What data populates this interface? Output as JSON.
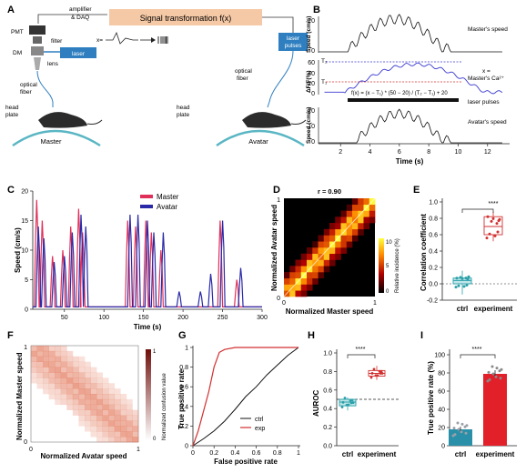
{
  "panels": {
    "A": {
      "letter": "A",
      "labels": {
        "amplifier": "amplifier",
        "daq": "& DAQ",
        "signal_box": "Signal transformation f(x)",
        "pmt": "PMT",
        "filter": "filter",
        "dm": "DM",
        "laser": "laser",
        "lens": "lens",
        "optical_fiber_l": "optical",
        "optical_fiber_l2": "fiber",
        "head_plate_l": "head",
        "head_plate_l2": "plate",
        "master": "Master",
        "x_eq": "x=",
        "laser_pulses_1": "laser",
        "laser_pulses_2": "pulses",
        "optical_fiber_r": "optical",
        "optical_fiber_r2": "fiber",
        "head_plate_r": "head",
        "head_plate_r2": "plate",
        "avatar": "Avatar"
      },
      "colors": {
        "signal_box": "#f6c9a6",
        "laser_box": "#2f7fc0",
        "wheel": "#5ab6c4"
      }
    },
    "B": {
      "letter": "B",
      "labels": {
        "ylabel_top": "Speed (cm/s)",
        "ylabel_mid": "ΔF/F(%)",
        "ylabel_bot": "Speed (cm/s)",
        "masters_speed": "Master's speed",
        "x_label_1": "x =",
        "x_label_2": "Master's Ca²⁺",
        "t2": "T₂",
        "t1": "T₁",
        "formula": "f(x) = (x − T₁) * (50 − 20) / (T₂ − T₁) + 20",
        "laser_pulses": "laser pulses",
        "avatars_speed": "Avatar's speed",
        "xlabel": "Time (s)"
      },
      "ticks_top": [
        "20",
        "0"
      ],
      "ticks_mid": [
        "60",
        "40",
        "20",
        "0"
      ],
      "ticks_bot": [
        "20",
        "10",
        "0"
      ],
      "ticks_x": [
        "2",
        "4",
        "6",
        "8",
        "10",
        "12"
      ],
      "colors": {
        "ca_trace": "#3a3ad0",
        "t2_line": "#3a3ad0",
        "t1_line": "#d23030"
      }
    },
    "C": {
      "letter": "C",
      "ylabel": "Speed (cm/s)",
      "xlabel": "Time (s)",
      "legend": [
        "Master",
        "Avatar"
      ],
      "colors": {
        "master": "#e0305a",
        "avatar": "#2a2aa8"
      },
      "chart_data": {
        "type": "line",
        "xlim": [
          0,
          300
        ],
        "ylim": [
          0,
          20
        ],
        "xticks": [
          "50",
          "100",
          "150",
          "200",
          "250",
          "300"
        ],
        "yticks": [
          "0",
          "5",
          "10",
          "15",
          "20"
        ],
        "series": [
          {
            "name": "Master",
            "bursts": [
              [
                15,
                18.5
              ],
              [
                22,
                15
              ],
              [
                35,
                9
              ],
              [
                48,
                10
              ],
              [
                58,
                14
              ],
              [
                68,
                17
              ],
              [
                73,
                13
              ],
              [
                130,
                15
              ],
              [
                140,
                14
              ],
              [
                153,
                15
              ],
              [
                160,
                13
              ],
              [
                172,
                10
              ],
              [
                247,
                15
              ],
              [
                268,
                5
              ]
            ]
          },
          {
            "name": "Avatar",
            "bursts": [
              [
                17,
                14
              ],
              [
                24,
                12
              ],
              [
                37,
                8
              ],
              [
                50,
                9
              ],
              [
                60,
                13
              ],
              [
                71,
                16
              ],
              [
                77,
                14
              ],
              [
                133,
                16
              ],
              [
                143,
                16
              ],
              [
                155,
                15
              ],
              [
                163,
                13
              ],
              [
                175,
                13
              ],
              [
                195,
                3
              ],
              [
                222,
                3
              ],
              [
                235,
                6
              ],
              [
                250,
                15
              ],
              [
                273,
                7
              ]
            ]
          }
        ]
      }
    },
    "D": {
      "letter": "D",
      "title": "r = 0.90",
      "ylabel": "Normalized Avatar speed",
      "xlabel": "Normalized Master speed",
      "cbar_label": "Relative incidence (%)",
      "cbar_ticks": [
        "10",
        "5",
        "0"
      ],
      "axis_ticks": {
        "x0": "0",
        "x1": "1",
        "y0": "0",
        "y1": "1"
      },
      "chart_data": {
        "type": "heatmap",
        "x_range": [
          0,
          1
        ],
        "y_range": [
          0,
          1
        ],
        "correlation": 0.9
      }
    },
    "E": {
      "letter": "E",
      "ylabel": "Correlation coefficient",
      "yticks": [
        "1.0",
        "0.8",
        "0.6",
        "0.4",
        "0.2",
        "0.0",
        "-0.2"
      ],
      "significance": "****",
      "chart_data": {
        "type": "box",
        "categories": [
          "ctrl",
          "experiment"
        ],
        "medians": [
          0.04,
          0.7
        ],
        "q1": [
          0.0,
          0.6
        ],
        "q3": [
          0.07,
          0.82
        ],
        "whisker_low": [
          -0.13,
          0.52
        ],
        "whisker_high": [
          0.16,
          0.88
        ],
        "ylim": [
          -0.2,
          1.0
        ]
      },
      "colors": {
        "ctrl": "#2aa0a8",
        "experiment": "#d23030"
      }
    },
    "F": {
      "letter": "F",
      "ylabel": "Normalized Master speed",
      "xlabel": "Normalized Avatar speed",
      "cbar_label": "Normalized confusion value",
      "cbar_ticks": [
        "1",
        "0"
      ],
      "axis_ticks": {
        "x0": "0",
        "x1": "1",
        "y0": "0",
        "y1": "1"
      },
      "chart_data": {
        "type": "heatmap",
        "x_range": [
          0,
          1
        ],
        "y_range": [
          0,
          1
        ]
      }
    },
    "G": {
      "letter": "G",
      "ylabel": "True positive rate",
      "xlabel": "False positive rate",
      "legend": [
        "ctrl",
        "exp"
      ],
      "chart_data": {
        "type": "line",
        "xlim": [
          0,
          1
        ],
        "ylim": [
          0,
          1
        ],
        "xticks": [
          "0",
          "0.2",
          "0.4",
          "0.6",
          "0.8",
          "1"
        ],
        "yticks": [
          "0",
          "0.2",
          "0.4",
          "0.6",
          "0.8",
          "1"
        ],
        "series": [
          {
            "name": "ctrl",
            "x": [
              0,
              0.1,
              0.2,
              0.3,
              0.4,
              0.5,
              0.6,
              0.7,
              0.8,
              0.9,
              1.0
            ],
            "y": [
              0,
              0.07,
              0.15,
              0.25,
              0.37,
              0.5,
              0.6,
              0.72,
              0.82,
              0.92,
              1.0
            ]
          },
          {
            "name": "exp",
            "x": [
              0,
              0.05,
              0.1,
              0.15,
              0.2,
              0.25,
              0.3,
              0.4,
              0.6,
              0.8,
              1.0
            ],
            "y": [
              0,
              0.15,
              0.35,
              0.55,
              0.8,
              0.95,
              0.98,
              1.0,
              1.0,
              1.0,
              1.0
            ]
          }
        ]
      },
      "colors": {
        "ctrl": "#111111",
        "exp": "#d23030"
      }
    },
    "H": {
      "letter": "H",
      "ylabel": "AUROC",
      "yticks": [
        "1.0",
        "0.8",
        "0.6",
        "0.4",
        "0.2",
        "0.0"
      ],
      "significance": "****",
      "chart_data": {
        "type": "box",
        "categories": [
          "ctrl",
          "experiment"
        ],
        "medians": [
          0.47,
          0.78
        ],
        "q1": [
          0.43,
          0.75
        ],
        "q3": [
          0.5,
          0.81
        ],
        "whisker_low": [
          0.38,
          0.71
        ],
        "whisker_high": [
          0.52,
          0.86
        ],
        "chance": 0.5,
        "ylim": [
          0,
          1.0
        ]
      },
      "colors": {
        "ctrl": "#2aa0a8",
        "experiment": "#d23030"
      }
    },
    "I": {
      "letter": "I",
      "ylabel": "True positive rate (%)",
      "yticks": [
        "100",
        "80",
        "60",
        "40",
        "20",
        "0"
      ],
      "significance": "****",
      "chart_data": {
        "type": "bar",
        "categories": [
          "ctrl",
          "experiment"
        ],
        "values": [
          18,
          79
        ],
        "errors": [
          3,
          4
        ],
        "ylim": [
          0,
          100
        ]
      },
      "colors": {
        "ctrl": "#2a8fa8",
        "experiment": "#e2202a"
      }
    }
  }
}
